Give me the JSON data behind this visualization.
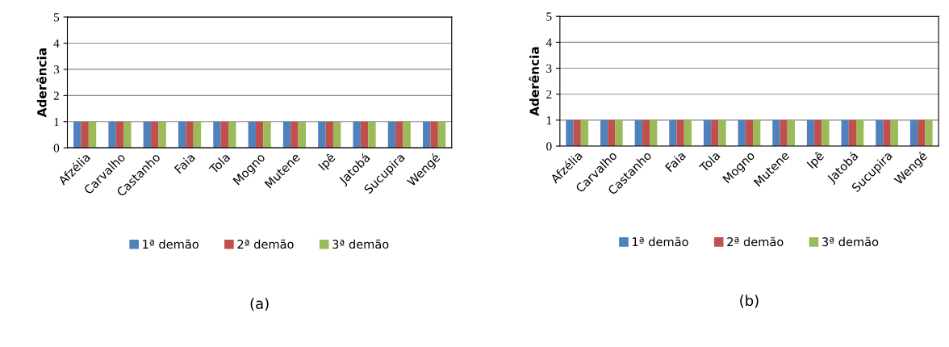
{
  "chart_data": [
    {
      "type": "bar",
      "ylabel": "Aderência",
      "categories": [
        "Afzélia",
        "Carvalho",
        "Castanho",
        "Faia",
        "Tola",
        "Mogno",
        "Mutene",
        "Ipê",
        "Jatobá",
        "Sucupira",
        "Wengé"
      ],
      "series": [
        {
          "name": "1ª demão",
          "color": "#4f81bd",
          "values": [
            1,
            1,
            1,
            1,
            1,
            1,
            1,
            1,
            1,
            1,
            1
          ]
        },
        {
          "name": "2ª demão",
          "color": "#c0504d",
          "values": [
            1,
            1,
            1,
            1,
            1,
            1,
            1,
            1,
            1,
            1,
            1
          ]
        },
        {
          "name": "3ª demão",
          "color": "#9bbb59",
          "values": [
            1,
            1,
            1,
            1,
            1,
            1,
            1,
            1,
            1,
            1,
            1
          ]
        }
      ],
      "ylim": [
        0,
        5
      ],
      "yticks": [
        0,
        1,
        2,
        3,
        4,
        5
      ],
      "grid": "y",
      "legend": "bottom",
      "annotations": [
        "(a)"
      ]
    },
    {
      "type": "bar",
      "ylabel": "Aderência",
      "categories": [
        "Afzélia",
        "Carvalho",
        "Castanho",
        "Faia",
        "Tola",
        "Mogno",
        "Mutene",
        "Ipê",
        "Jatobá",
        "Sucupira",
        "Wengé"
      ],
      "series": [
        {
          "name": "1ª demão",
          "color": "#4f81bd",
          "values": [
            1,
            1,
            1,
            1,
            1,
            1,
            1,
            1,
            1,
            1,
            1
          ]
        },
        {
          "name": "2ª demão",
          "color": "#c0504d",
          "values": [
            1,
            1,
            1,
            1,
            1,
            1,
            1,
            1,
            1,
            1,
            1
          ]
        },
        {
          "name": "3ª demão",
          "color": "#9bbb59",
          "values": [
            1,
            1,
            1,
            1,
            1,
            1,
            1,
            1,
            1,
            1,
            1
          ]
        }
      ],
      "ylim": [
        0,
        5
      ],
      "yticks": [
        0,
        1,
        2,
        3,
        4,
        5
      ],
      "grid": "y",
      "legend": "bottom",
      "annotations": [
        "(b)"
      ]
    }
  ]
}
